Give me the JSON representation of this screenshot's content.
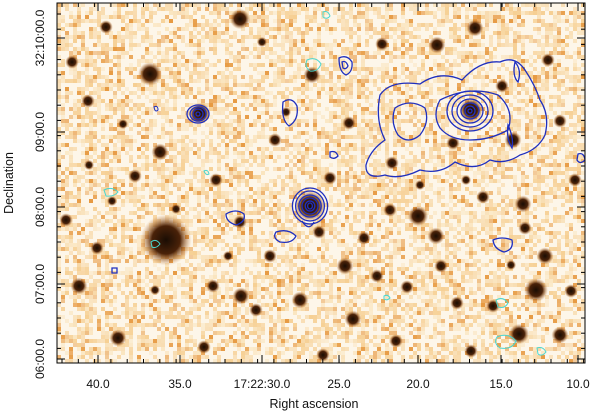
{
  "figure": {
    "xlabel": "Right ascension",
    "ylabel": "Declination",
    "x_ticks": [
      "40.0",
      "35.0",
      "17:22:30.0",
      "25.0",
      "20.0",
      "15.0",
      "10.0"
    ],
    "y_ticks": [
      "06:00.0",
      "07:00.0",
      "08:00.0",
      "09:00.0",
      "32:10:00.0"
    ],
    "colors": {
      "background": "#fdf6e9",
      "speckle_light": "#f6cf93",
      "speckle_mid": "#e79a42",
      "source_dark": "#2a1506",
      "contour_blue": "#1f2fbf",
      "contour_cyan": "#49d6cf"
    }
  }
}
